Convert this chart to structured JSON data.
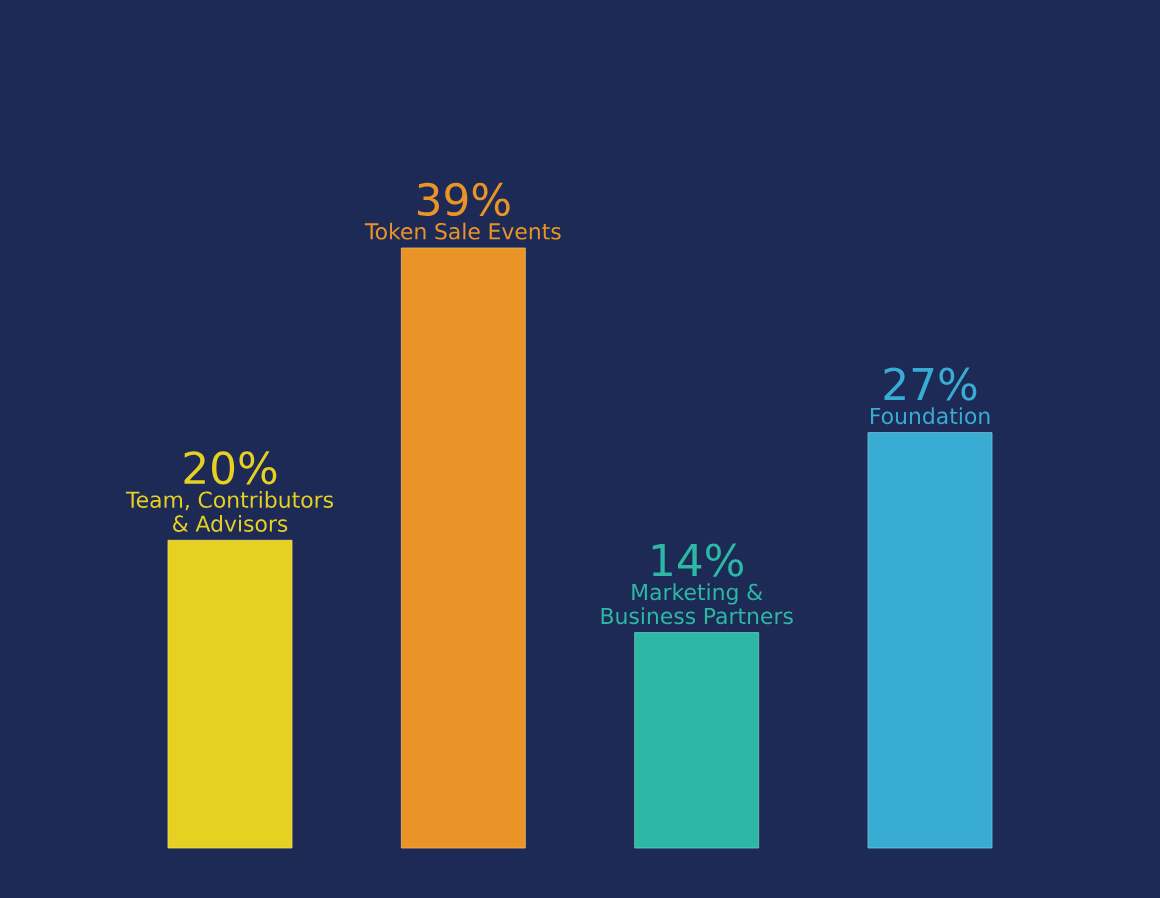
{
  "chart_data": {
    "type": "bar",
    "categories": [
      "Team, Contributors & Advisors",
      "Token Sale Events",
      "Marketing & Business Partners",
      "Foundation"
    ],
    "values": [
      20,
      39,
      14,
      27
    ],
    "value_labels": [
      "20%",
      "39%",
      "14%",
      "27%"
    ],
    "colors": [
      "#e6d022",
      "#ea9428",
      "#2cb8a4",
      "#38acd2"
    ]
  }
}
